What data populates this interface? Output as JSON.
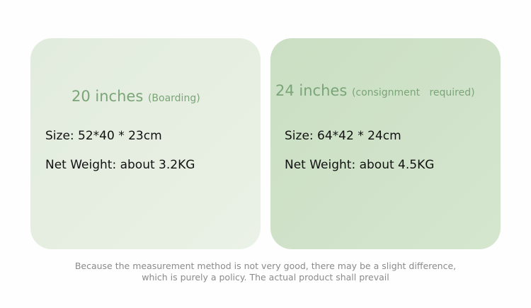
{
  "cards": [
    {
      "title": "20 inches",
      "note": "(Boarding)",
      "size": "Size: 52*40 * 23cm",
      "weight": "Net Weight: about 3.2KG"
    },
    {
      "title": "24 inches",
      "note": "(consignment   required)",
      "size": "Size: 64*42 * 24cm",
      "weight": "Net Weight: about 4.5KG"
    }
  ],
  "footer": {
    "lines": [
      "Because the measurement method is not very good, there may be a slight difference,",
      "which is purely a policy. The actual product shall prevail"
    ]
  }
}
